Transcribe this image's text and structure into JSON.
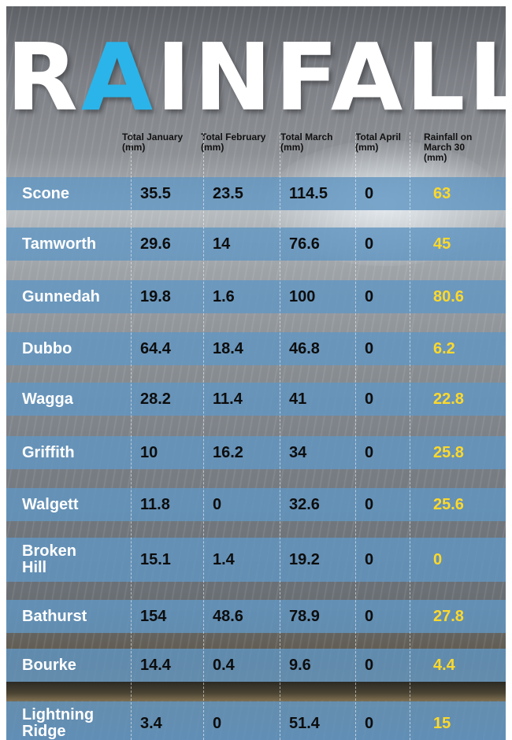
{
  "title": {
    "accent": "A",
    "before": "R",
    "after": "INFALL"
  },
  "chart_data": {
    "type": "table",
    "columns": [
      "Total January (mm)",
      "Total February (mm)",
      "Total March (mm)",
      "Total April (mm)",
      "Rainfall on March 30 (mm)"
    ],
    "header_lines": [
      [
        "Total January",
        "(mm)"
      ],
      [
        "Total February",
        "(mm)"
      ],
      [
        "Total March",
        "(mm)"
      ],
      [
        "Total April",
        "(mm)"
      ],
      [
        "Rainfall on",
        "March 30",
        "(mm)"
      ]
    ],
    "rows": [
      {
        "name_lines": [
          "Scone"
        ],
        "values": [
          "35.5",
          "23.5",
          "114.5",
          "0",
          "63"
        ]
      },
      {
        "name_lines": [
          "Tamworth"
        ],
        "values": [
          "29.6",
          "14",
          "76.6",
          "0",
          "45"
        ]
      },
      {
        "name_lines": [
          "Gunnedah"
        ],
        "values": [
          "19.8",
          "1.6",
          "100",
          "0",
          "80.6"
        ]
      },
      {
        "name_lines": [
          "Dubbo"
        ],
        "values": [
          "64.4",
          "18.4",
          "46.8",
          "0",
          "6.2"
        ]
      },
      {
        "name_lines": [
          "Wagga"
        ],
        "values": [
          "28.2",
          "11.4",
          "41",
          "0",
          "22.8"
        ]
      },
      {
        "name_lines": [
          "Griffith"
        ],
        "values": [
          "10",
          "16.2",
          "34",
          "0",
          "25.8"
        ]
      },
      {
        "name_lines": [
          "Walgett"
        ],
        "values": [
          "11.8",
          "0",
          "32.6",
          "0",
          "25.6"
        ]
      },
      {
        "name_lines": [
          "Broken",
          "Hill"
        ],
        "values": [
          "15.1",
          "1.4",
          "19.2",
          "0",
          "0"
        ]
      },
      {
        "name_lines": [
          "Bathurst"
        ],
        "values": [
          "154",
          "48.6",
          "78.9",
          "0",
          "27.8"
        ]
      },
      {
        "name_lines": [
          "Bourke"
        ],
        "values": [
          "14.4",
          "0.4",
          "9.6",
          "0",
          "4.4"
        ]
      },
      {
        "name_lines": [
          "Lightning",
          "Ridge"
        ],
        "values": [
          "3.4",
          "0",
          "51.4",
          "0",
          "15"
        ]
      }
    ],
    "colors": {
      "accent": "#2bb4ea",
      "row_band": "#6296c2",
      "highlight": "#ffd92a",
      "name_text": "#ffffff",
      "value_text": "#0d0d0d"
    }
  }
}
